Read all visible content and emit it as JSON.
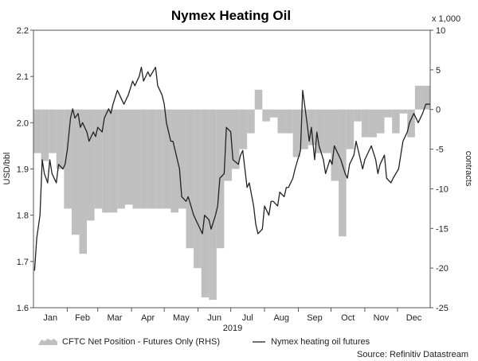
{
  "chart_data": {
    "type": "line",
    "title": "Nymex Heating Oil",
    "xlabel": "2019",
    "ylabel_left": "USD/bbl",
    "ylabel_right": "contracts",
    "right_multiplier_label": "x 1,000",
    "source": "Source: Refinitiv Datastream",
    "x_ticks": [
      "Jan",
      "Feb",
      "Mar",
      "Apr",
      "May",
      "Jun",
      "Jul",
      "Aug",
      "Sep",
      "Oct",
      "Nov",
      "Dec"
    ],
    "ylim_left": [
      1.6,
      2.2
    ],
    "ylim_right": [
      -25,
      10
    ],
    "y_ticks_left": [
      "1.6",
      "1.7",
      "1.8",
      "1.9",
      "2.0",
      "2.1",
      "2.2"
    ],
    "y_ticks_right": [
      "-25",
      "-20",
      "-15",
      "-10",
      "-5",
      "0",
      "5",
      "10"
    ],
    "legend": [
      {
        "label": "CFTC Net Position - Futures Only (RHS)",
        "kind": "area",
        "color": "#bfbfbf"
      },
      {
        "label": "Nymex heating oil futures",
        "kind": "line",
        "color": "#222222"
      }
    ],
    "series": [
      {
        "name": "CFTC Net Position - Futures Only (RHS)",
        "axis": "right",
        "kind": "step-area",
        "color": "#bfbfbf",
        "x": [
          "2019-01-01",
          "2019-01-08",
          "2019-01-15",
          "2019-01-22",
          "2019-01-29",
          "2019-02-05",
          "2019-02-12",
          "2019-02-19",
          "2019-02-26",
          "2019-03-05",
          "2019-03-12",
          "2019-03-19",
          "2019-03-26",
          "2019-04-02",
          "2019-04-09",
          "2019-04-16",
          "2019-04-23",
          "2019-04-30",
          "2019-05-07",
          "2019-05-14",
          "2019-05-21",
          "2019-05-28",
          "2019-06-04",
          "2019-06-11",
          "2019-06-18",
          "2019-06-25",
          "2019-07-02",
          "2019-07-09",
          "2019-07-16",
          "2019-07-23",
          "2019-07-30",
          "2019-08-06",
          "2019-08-13",
          "2019-08-20",
          "2019-08-27",
          "2019-09-03",
          "2019-09-10",
          "2019-09-17",
          "2019-09-24",
          "2019-10-01",
          "2019-10-08",
          "2019-10-15",
          "2019-10-22",
          "2019-10-29",
          "2019-11-05",
          "2019-11-12",
          "2019-11-19",
          "2019-11-26",
          "2019-12-03",
          "2019-12-10",
          "2019-12-17",
          "2019-12-24"
        ],
        "values": [
          -5.5,
          -6.5,
          -5.5,
          -7.5,
          -12.5,
          -15.8,
          -18.2,
          -14,
          -12.5,
          -13,
          -13,
          -12.5,
          -12,
          -12.5,
          -12.5,
          -12.5,
          -12.5,
          -12.5,
          -13,
          -12.5,
          -17.5,
          -20,
          -23.7,
          -24,
          -17.5,
          -9,
          -7.5,
          -5,
          -3,
          2.5,
          -1.5,
          -1,
          -3,
          -3,
          -6,
          -5,
          -4.5,
          -5.5,
          -5.5,
          -9,
          -16,
          -5,
          -1.5,
          -3.5,
          -3.5,
          -3,
          -1,
          -3,
          -0.5,
          -3.5,
          3,
          3
        ]
      },
      {
        "name": "Nymex heating oil futures",
        "axis": "left",
        "kind": "line",
        "color": "#222222",
        "x": [
          "2019-01-02",
          "2019-01-04",
          "2019-01-07",
          "2019-01-09",
          "2019-01-11",
          "2019-01-14",
          "2019-01-16",
          "2019-01-18",
          "2019-01-22",
          "2019-01-24",
          "2019-01-28",
          "2019-01-30",
          "2019-02-01",
          "2019-02-04",
          "2019-02-06",
          "2019-02-08",
          "2019-02-11",
          "2019-02-13",
          "2019-02-15",
          "2019-02-19",
          "2019-02-21",
          "2019-02-25",
          "2019-02-27",
          "2019-03-01",
          "2019-03-05",
          "2019-03-07",
          "2019-03-11",
          "2019-03-13",
          "2019-03-15",
          "2019-03-19",
          "2019-03-21",
          "2019-03-25",
          "2019-03-27",
          "2019-03-29",
          "2019-04-02",
          "2019-04-04",
          "2019-04-08",
          "2019-04-10",
          "2019-04-12",
          "2019-04-16",
          "2019-04-18",
          "2019-04-23",
          "2019-04-25",
          "2019-04-29",
          "2019-05-01",
          "2019-05-03",
          "2019-05-07",
          "2019-05-09",
          "2019-05-13",
          "2019-05-15",
          "2019-05-17",
          "2019-05-21",
          "2019-05-23",
          "2019-05-28",
          "2019-05-30",
          "2019-06-03",
          "2019-06-05",
          "2019-06-07",
          "2019-06-11",
          "2019-06-13",
          "2019-06-17",
          "2019-06-19",
          "2019-06-21",
          "2019-06-25",
          "2019-06-27",
          "2019-07-01",
          "2019-07-03",
          "2019-07-08",
          "2019-07-10",
          "2019-07-12",
          "2019-07-16",
          "2019-07-18",
          "2019-07-22",
          "2019-07-24",
          "2019-07-26",
          "2019-07-30",
          "2019-08-01",
          "2019-08-05",
          "2019-08-07",
          "2019-08-09",
          "2019-08-13",
          "2019-08-15",
          "2019-08-19",
          "2019-08-21",
          "2019-08-23",
          "2019-08-27",
          "2019-08-29",
          "2019-09-03",
          "2019-09-05",
          "2019-09-09",
          "2019-09-11",
          "2019-09-13",
          "2019-09-16",
          "2019-09-18",
          "2019-09-20",
          "2019-09-24",
          "2019-09-26",
          "2019-09-30",
          "2019-10-02",
          "2019-10-04",
          "2019-10-08",
          "2019-10-10",
          "2019-10-14",
          "2019-10-16",
          "2019-10-18",
          "2019-10-22",
          "2019-10-24",
          "2019-10-28",
          "2019-10-30",
          "2019-11-01",
          "2019-11-05",
          "2019-11-07",
          "2019-11-11",
          "2019-11-13",
          "2019-11-15",
          "2019-11-19",
          "2019-11-21",
          "2019-11-25",
          "2019-11-27",
          "2019-12-02",
          "2019-12-04",
          "2019-12-06",
          "2019-12-10",
          "2019-12-12",
          "2019-12-16",
          "2019-12-18",
          "2019-12-20",
          "2019-12-24",
          "2019-12-27",
          "2019-12-31"
        ],
        "values": [
          1.68,
          1.75,
          1.8,
          1.92,
          1.89,
          1.87,
          1.92,
          1.89,
          1.87,
          1.91,
          1.9,
          1.91,
          1.94,
          2.01,
          2.03,
          2.01,
          2.02,
          1.99,
          2.0,
          1.98,
          1.96,
          1.98,
          1.97,
          1.99,
          1.98,
          2.01,
          2.03,
          2.02,
          2.04,
          2.07,
          2.06,
          2.04,
          2.05,
          2.06,
          2.09,
          2.08,
          2.1,
          2.12,
          2.09,
          2.11,
          2.1,
          2.12,
          2.08,
          2.06,
          2.04,
          2.0,
          1.96,
          1.96,
          1.92,
          1.9,
          1.84,
          1.83,
          1.84,
          1.8,
          1.79,
          1.77,
          1.76,
          1.8,
          1.79,
          1.77,
          1.8,
          1.82,
          1.88,
          1.89,
          1.99,
          1.98,
          1.92,
          1.91,
          1.93,
          1.94,
          1.86,
          1.87,
          1.82,
          1.78,
          1.76,
          1.77,
          1.82,
          1.8,
          1.83,
          1.83,
          1.82,
          1.85,
          1.84,
          1.86,
          1.86,
          1.88,
          1.9,
          1.94,
          2.07,
          2.0,
          1.96,
          1.99,
          1.92,
          1.98,
          1.95,
          1.92,
          1.89,
          1.92,
          1.91,
          1.95,
          1.93,
          1.92,
          1.89,
          1.88,
          1.91,
          1.93,
          1.96,
          1.92,
          1.9,
          1.92,
          1.94,
          1.95,
          1.92,
          1.89,
          1.91,
          1.93,
          1.88,
          1.87,
          1.88,
          1.9,
          1.93,
          1.96,
          1.98,
          2.0,
          2.02,
          2.01,
          2.0,
          2.02,
          2.04,
          2.04
        ]
      }
    ],
    "grid": false,
    "legend_position": "bottom"
  }
}
